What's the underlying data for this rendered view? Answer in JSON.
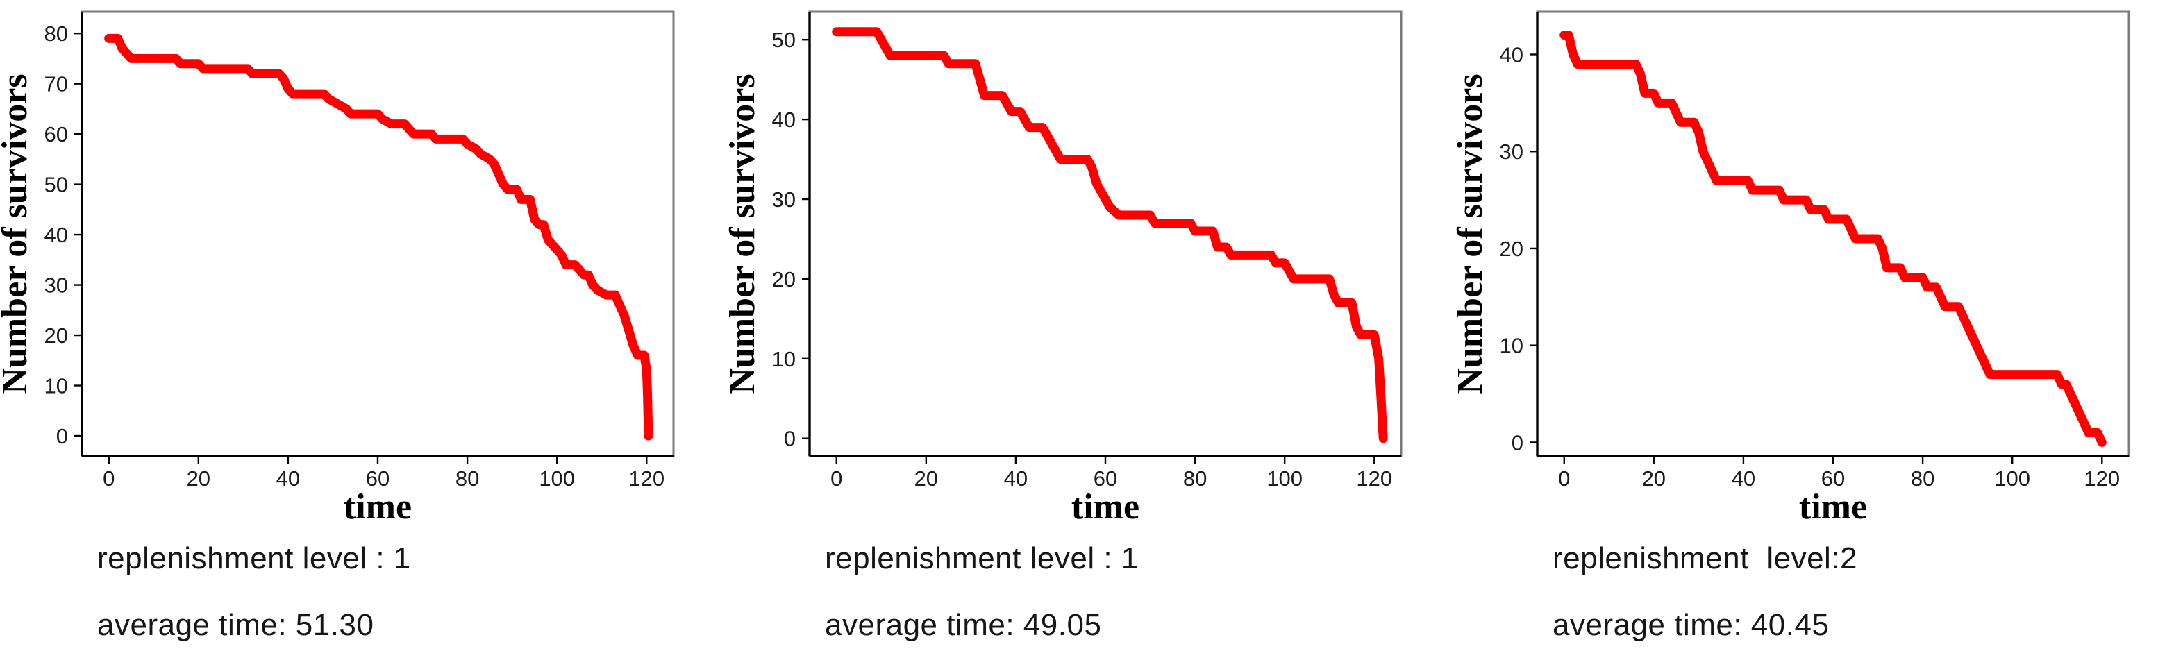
{
  "page": {
    "background": "#ffffff",
    "line_color": "#ff0000"
  },
  "panels": [
    {
      "replenishment_label": "replenishment level : 1",
      "average_time_label": "average time: 51.30"
    },
    {
      "replenishment_label": "replenishment level : 1",
      "average_time_label": "average time: 49.05"
    },
    {
      "replenishment_label": "replenishment  level:2",
      "average_time_label": "average time: 40.45"
    }
  ],
  "chart_data": [
    {
      "type": "line",
      "style": "survival-step",
      "title": "",
      "xlabel": "time",
      "ylabel": "Number of survivors",
      "xticks": [
        0,
        20,
        40,
        60,
        80,
        100,
        120
      ],
      "yticks": [
        0,
        10,
        20,
        30,
        40,
        50,
        60,
        70,
        80
      ],
      "xlim": [
        -6,
        126
      ],
      "ylim": [
        -4,
        84.3
      ],
      "grid": false,
      "legend": null,
      "line_color": "#ff0000",
      "replenishment_level": 1,
      "average_time": 51.3,
      "series": [
        {
          "name": "survivors",
          "points": [
            [
              0,
              79
            ],
            [
              2,
              79
            ],
            [
              3,
              77
            ],
            [
              5,
              75
            ],
            [
              15,
              75
            ],
            [
              16,
              74
            ],
            [
              20,
              74
            ],
            [
              21,
              73
            ],
            [
              31,
              73
            ],
            [
              32,
              72
            ],
            [
              38,
              72
            ],
            [
              39,
              71
            ],
            [
              40,
              69
            ],
            [
              41,
              68
            ],
            [
              48,
              68
            ],
            [
              49,
              67
            ],
            [
              51,
              66
            ],
            [
              53,
              65
            ],
            [
              54,
              64
            ],
            [
              60,
              64
            ],
            [
              61,
              63
            ],
            [
              63,
              62
            ],
            [
              66,
              62
            ],
            [
              67,
              61
            ],
            [
              68,
              60
            ],
            [
              72,
              60
            ],
            [
              73,
              59
            ],
            [
              79,
              59
            ],
            [
              80,
              58
            ],
            [
              82,
              57
            ],
            [
              83,
              56
            ],
            [
              85,
              55
            ],
            [
              86,
              54
            ],
            [
              87,
              52
            ],
            [
              88,
              50
            ],
            [
              89,
              49
            ],
            [
              91,
              49
            ],
            [
              92,
              47
            ],
            [
              94,
              47
            ],
            [
              95,
              43
            ],
            [
              96,
              42
            ],
            [
              97,
              42
            ],
            [
              98,
              39
            ],
            [
              99,
              38
            ],
            [
              100,
              37
            ],
            [
              101,
              36
            ],
            [
              102,
              34
            ],
            [
              104,
              34
            ],
            [
              105,
              33
            ],
            [
              106,
              32
            ],
            [
              107,
              32
            ],
            [
              108,
              30
            ],
            [
              109,
              29
            ],
            [
              111,
              28
            ],
            [
              113,
              28
            ],
            [
              114,
              26
            ],
            [
              115,
              24
            ],
            [
              116,
              21
            ],
            [
              117,
              18
            ],
            [
              118,
              16
            ],
            [
              119.5,
              16
            ],
            [
              120,
              13
            ],
            [
              120.2,
              8
            ],
            [
              120.4,
              0
            ]
          ]
        }
      ]
    },
    {
      "type": "line",
      "style": "survival-step",
      "title": "",
      "xlabel": "time",
      "ylabel": "Number of survivors",
      "xticks": [
        0,
        20,
        40,
        60,
        80,
        100,
        120
      ],
      "yticks": [
        0,
        10,
        20,
        30,
        40,
        50
      ],
      "xlim": [
        -6,
        126
      ],
      "ylim": [
        -2.2,
        53.5
      ],
      "grid": false,
      "legend": null,
      "line_color": "#ff0000",
      "replenishment_level": 1,
      "average_time": 49.05,
      "series": [
        {
          "name": "survivors",
          "points": [
            [
              0,
              51
            ],
            [
              9,
              51
            ],
            [
              10,
              50
            ],
            [
              11,
              49
            ],
            [
              12,
              48
            ],
            [
              24,
              48
            ],
            [
              25,
              47
            ],
            [
              31,
              47
            ],
            [
              32,
              45
            ],
            [
              33,
              43
            ],
            [
              37,
              43
            ],
            [
              38,
              42
            ],
            [
              39,
              41
            ],
            [
              41,
              41
            ],
            [
              42,
              40
            ],
            [
              43,
              39
            ],
            [
              46,
              39
            ],
            [
              47,
              38
            ],
            [
              48,
              37
            ],
            [
              49,
              36
            ],
            [
              50,
              35
            ],
            [
              56,
              35
            ],
            [
              57,
              34
            ],
            [
              58,
              32
            ],
            [
              59,
              31
            ],
            [
              60,
              30
            ],
            [
              61,
              29
            ],
            [
              63,
              28
            ],
            [
              70,
              28
            ],
            [
              71,
              27
            ],
            [
              79,
              27
            ],
            [
              80,
              26
            ],
            [
              84,
              26
            ],
            [
              85,
              24
            ],
            [
              87,
              24
            ],
            [
              88,
              23
            ],
            [
              97,
              23
            ],
            [
              98,
              22
            ],
            [
              100,
              22
            ],
            [
              101,
              21
            ],
            [
              102,
              20
            ],
            [
              110,
              20
            ],
            [
              111,
              18
            ],
            [
              112,
              17
            ],
            [
              115,
              17
            ],
            [
              116,
              14
            ],
            [
              117,
              13
            ],
            [
              120,
              13
            ],
            [
              121,
              10
            ],
            [
              121.5,
              5
            ],
            [
              122,
              0
            ]
          ]
        }
      ]
    },
    {
      "type": "line",
      "style": "survival-step",
      "title": "",
      "xlabel": "time",
      "ylabel": "Number of survivors",
      "xticks": [
        0,
        20,
        40,
        60,
        80,
        100,
        120
      ],
      "yticks": [
        0,
        10,
        20,
        30,
        40
      ],
      "xlim": [
        -6,
        126
      ],
      "ylim": [
        -1.4,
        44.4
      ],
      "grid": false,
      "legend": null,
      "line_color": "#ff0000",
      "replenishment_level": 2,
      "average_time": 40.45,
      "series": [
        {
          "name": "survivors",
          "points": [
            [
              0,
              42
            ],
            [
              1,
              42
            ],
            [
              2,
              40
            ],
            [
              3,
              39
            ],
            [
              16,
              39
            ],
            [
              17,
              38
            ],
            [
              18,
              36
            ],
            [
              20,
              36
            ],
            [
              21,
              35
            ],
            [
              24,
              35
            ],
            [
              25,
              34
            ],
            [
              26,
              33
            ],
            [
              29,
              33
            ],
            [
              30,
              32
            ],
            [
              31,
              30
            ],
            [
              32,
              29
            ],
            [
              33,
              28
            ],
            [
              34,
              27
            ],
            [
              41,
              27
            ],
            [
              42,
              26
            ],
            [
              48,
              26
            ],
            [
              49,
              25
            ],
            [
              54,
              25
            ],
            [
              55,
              24
            ],
            [
              58,
              24
            ],
            [
              59,
              23
            ],
            [
              63,
              23
            ],
            [
              64,
              22
            ],
            [
              65,
              21
            ],
            [
              70,
              21
            ],
            [
              71,
              20
            ],
            [
              72,
              18
            ],
            [
              75,
              18
            ],
            [
              76,
              17
            ],
            [
              80,
              17
            ],
            [
              81,
              16
            ],
            [
              83,
              16
            ],
            [
              84,
              15
            ],
            [
              85,
              14
            ],
            [
              88,
              14
            ],
            [
              89,
              13
            ],
            [
              90,
              12
            ],
            [
              91,
              11
            ],
            [
              92,
              10
            ],
            [
              93,
              9
            ],
            [
              94,
              8
            ],
            [
              95,
              7
            ],
            [
              110,
              7
            ],
            [
              111,
              6
            ],
            [
              112,
              6
            ],
            [
              113,
              5
            ],
            [
              114,
              4
            ],
            [
              115,
              3
            ],
            [
              116,
              2
            ],
            [
              117,
              1
            ],
            [
              119,
              1
            ],
            [
              120,
              0
            ]
          ]
        }
      ]
    }
  ]
}
